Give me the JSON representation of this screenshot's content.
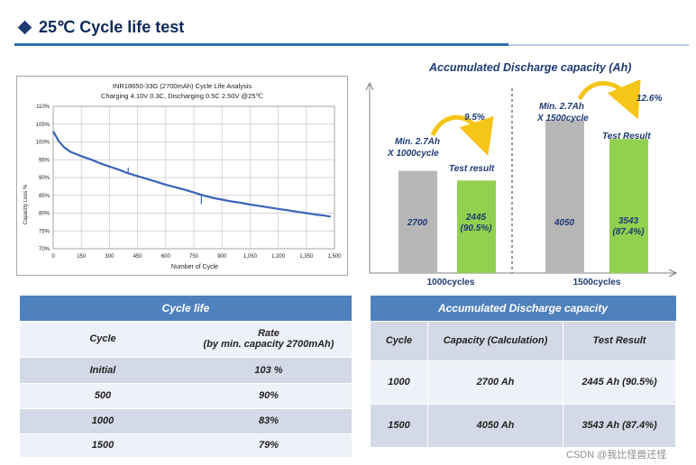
{
  "page": {
    "title": "25℃ Cycle life test"
  },
  "line_chart": {
    "title_line1": "INR18650-33G (2700mAh) Cycle Life Analysis",
    "title_line2": "Charging 4.10V 0.3C, Discharging 0.5C 2.50V @25℃",
    "ylabel": "Capacity Loss %",
    "xlabel": "Number of Cycle"
  },
  "bar_chart": {
    "title": "Accumulated Discharge capacity (Ah)",
    "group1": {
      "min_label_1": "Min. 2.7Ah",
      "min_label_2": "X 1000cycle",
      "percent": "9.5%",
      "result_label": "Test result",
      "min_value": "2700",
      "result_value_1": "2445",
      "result_value_2": "(90.5%)",
      "cycles": "1000cycles"
    },
    "group2": {
      "min_label_1": "Min. 2.7Ah",
      "min_label_2": "X 1500cycle",
      "percent": "12.6%",
      "result_label": "Test Result",
      "min_value": "4050",
      "result_value_1": "3543",
      "result_value_2": "(87.4%)",
      "cycles": "1500cycles"
    }
  },
  "chart_data": [
    {
      "type": "line",
      "title": "INR18650-33G (2700mAh) Cycle Life Analysis",
      "subtitle": "Charging 4.10V 0.3C, Discharging 0.5C 2.50V @25℃",
      "xlabel": "Number of Cycle",
      "ylabel": "Capacity Loss %",
      "xlim": [
        0,
        1500
      ],
      "ylim": [
        70,
        110
      ],
      "x_ticks": [
        "0",
        "150",
        "300",
        "450",
        "600",
        "750",
        "900",
        "1,050",
        "1,200",
        "1,350",
        "1,500"
      ],
      "y_ticks": [
        "70%",
        "75%",
        "80%",
        "85%",
        "90%",
        "95%",
        "100%",
        "105%",
        "110%"
      ],
      "series": [
        {
          "name": "Capacity",
          "x": [
            0,
            15,
            30,
            60,
            90,
            120,
            150,
            200,
            250,
            300,
            350,
            400,
            450,
            500,
            550,
            600,
            650,
            700,
            750,
            800,
            850,
            900,
            950,
            1000,
            1050,
            1100,
            1150,
            1200,
            1250,
            1300,
            1350,
            1400,
            1450,
            1480
          ],
          "y": [
            103,
            101.6,
            100.2,
            98.4,
            97.3,
            96.6,
            96.0,
            95.1,
            94.0,
            93.1,
            92.2,
            91.2,
            90.4,
            89.6,
            88.8,
            88.0,
            87.3,
            86.6,
            85.8,
            85.0,
            84.3,
            83.8,
            83.3,
            82.9,
            82.4,
            82.0,
            81.6,
            81.2,
            80.8,
            80.4,
            80.0,
            79.6,
            79.3,
            79.0
          ]
        }
      ]
    },
    {
      "type": "bar",
      "title": "Accumulated Discharge capacity (Ah)",
      "categories": [
        "1000cycles",
        "1500cycles"
      ],
      "series": [
        {
          "name": "Min. 2.7Ah X cycles",
          "values": [
            2700,
            4050
          ]
        },
        {
          "name": "Test result",
          "values": [
            2445,
            3543
          ]
        }
      ],
      "ylim": [
        0,
        4500
      ]
    }
  ],
  "table1": {
    "title": "Cycle life",
    "col1": "Cycle",
    "col2_line1": "Rate",
    "col2_line2": "(by min. capacity 2700mAh)",
    "rows": [
      {
        "cycle": "Initial",
        "rate": "103 %"
      },
      {
        "cycle": "500",
        "rate": "90%"
      },
      {
        "cycle": "1000",
        "rate": "83%"
      },
      {
        "cycle": "1500",
        "rate": "79%"
      }
    ]
  },
  "table2": {
    "title": "Accumulated Discharge capacity",
    "col1": "Cycle",
    "col2": "Capacity (Calculation)",
    "col3": "Test Result",
    "rows": [
      {
        "cycle": "1000",
        "capacity": "2700 Ah",
        "result": "2445 Ah (90.5%)"
      },
      {
        "cycle": "1500",
        "capacity": "4050 Ah",
        "result": "3543 Ah (87.4%)"
      }
    ]
  },
  "watermark": "CSDN @我比怪兽还怪",
  "colors": {
    "line": "#3a64b8",
    "bar_gray": "#b7b7b7",
    "bar_green": "#92d050",
    "header_blue": "#4f81bd",
    "title_blue": "#1f3a73",
    "arrow_yellow": "#f5c518"
  }
}
